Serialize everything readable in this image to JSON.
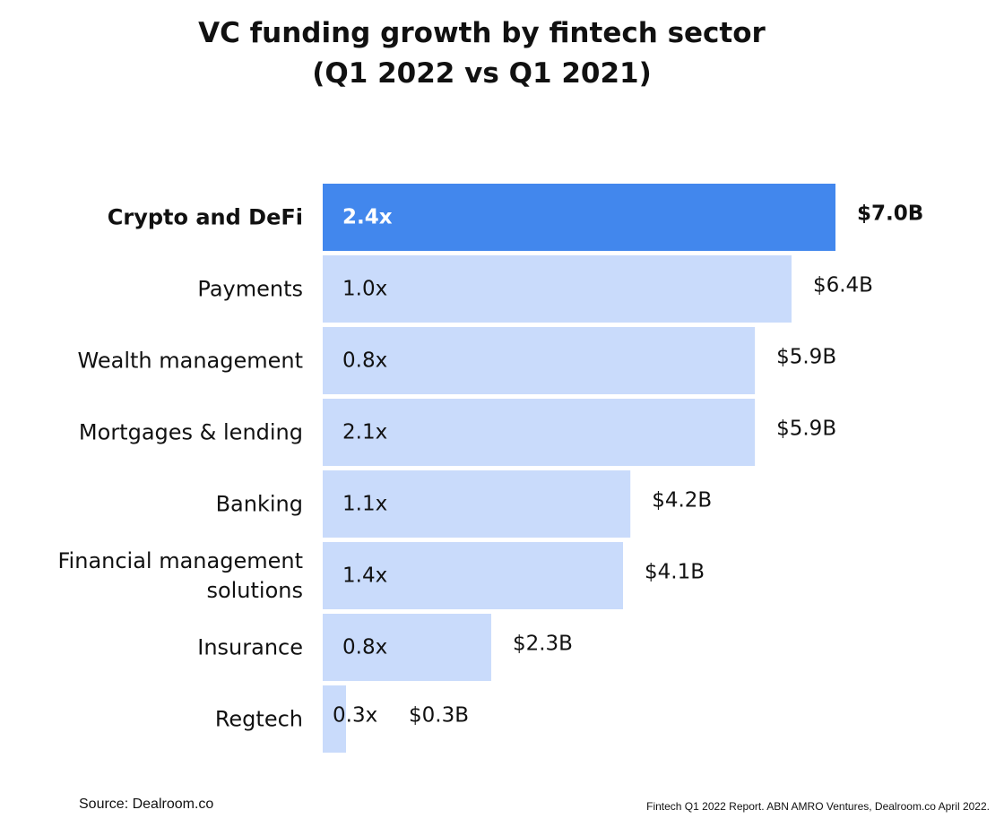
{
  "title_line1": "VC funding growth by fintech sector",
  "title_line2": "(Q1 2022 vs Q1 2021)",
  "source": "Source: Dealroom.co",
  "report_note": "Fintech Q1 2022 Report. ABN AMRO Ventures, Dealroom.co April 2022.",
  "colors": {
    "highlight_bar": "#4287ed",
    "default_bar": "#c9dbfb",
    "text": "#111111",
    "highlight_bar_text": "#ffffff"
  },
  "chart_data": {
    "type": "bar",
    "orientation": "horizontal",
    "title": "VC funding growth by fintech sector (Q1 2022 vs Q1 2021)",
    "xlabel": "",
    "ylabel": "",
    "grid": false,
    "xlim": [
      0,
      7.0
    ],
    "unit": "$B",
    "categories": [
      "Crypto and DeFi",
      "Payments",
      "Wealth management",
      "Mortgages & lending",
      "Banking",
      "Financial management solutions",
      "Insurance",
      "Regtech"
    ],
    "category_lines": [
      [
        "Crypto and DeFi"
      ],
      [
        "Payments"
      ],
      [
        "Wealth management"
      ],
      [
        "Mortgages & lending"
      ],
      [
        "Banking"
      ],
      [
        "Financial management",
        "solutions"
      ],
      [
        "Insurance"
      ],
      [
        "Regtech"
      ]
    ],
    "values": [
      7.0,
      6.4,
      5.9,
      5.9,
      4.2,
      4.1,
      2.3,
      0.3
    ],
    "value_labels": [
      "$7.0B",
      "$6.4B",
      "$5.9B",
      "$5.9B",
      "$4.2B",
      "$4.1B",
      "$2.3B",
      "$0.3B"
    ],
    "growth_labels": [
      "2.4x",
      "1.0x",
      "0.8x",
      "2.1x",
      "1.1x",
      "1.4x",
      "0.8x",
      "0.3x"
    ],
    "highlighted_index": 0
  }
}
